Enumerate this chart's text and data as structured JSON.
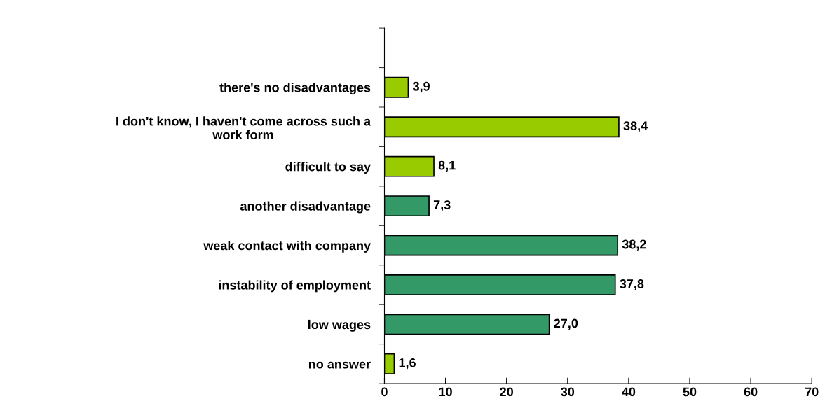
{
  "chart_data": {
    "type": "bar",
    "orientation": "horizontal",
    "categories": [
      null,
      "there's no disadvantages",
      "I don't know, I haven't come across such a\nwork form",
      "difficult to say",
      "another disadvantage",
      "weak contact with company",
      "instability of employment",
      "low wages",
      "no answer"
    ],
    "values": [
      null,
      3.9,
      38.4,
      8.1,
      7.3,
      38.2,
      37.8,
      27.0,
      1.6
    ],
    "colors": [
      "#99cc00",
      "#99cc00",
      "#99cc00",
      "#99cc00",
      "#339966",
      "#339966",
      "#339966",
      "#339966",
      "#99cc00"
    ],
    "value_labels": [
      null,
      "3,9",
      "38,4",
      "8,1",
      "7,3",
      "38,2",
      "37,8",
      "27,0",
      "1,6"
    ],
    "xlim": [
      0,
      70
    ],
    "xticks": [
      0,
      10,
      20,
      30,
      40,
      50,
      60,
      70
    ],
    "grid": false,
    "legend": false
  }
}
